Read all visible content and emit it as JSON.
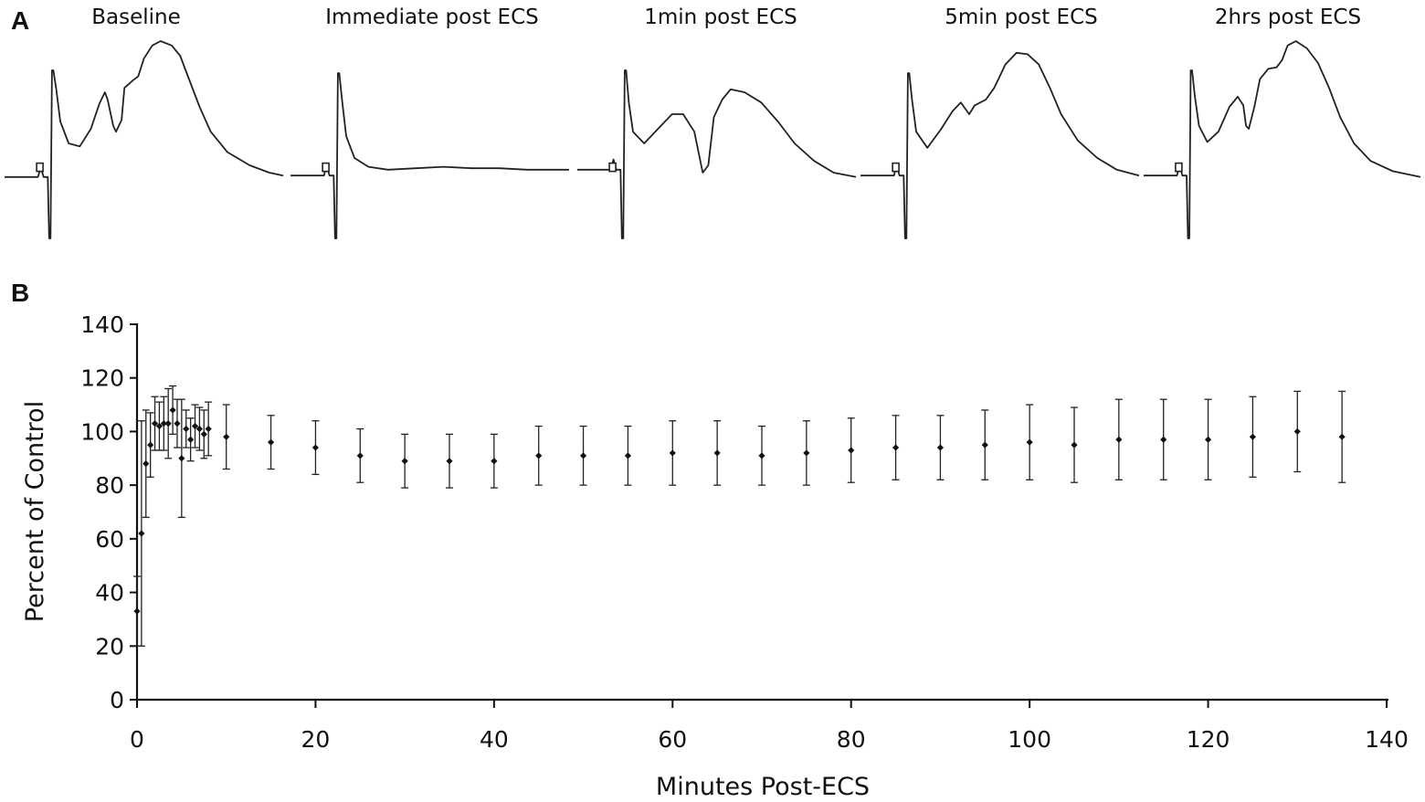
{
  "panel_a": {
    "label": "A",
    "traces": [
      {
        "name": "baseline",
        "title": "Baseline",
        "shape": [
          [
            0,
            0.93
          ],
          [
            0.12,
            0.93
          ],
          [
            0.13,
            0.86
          ],
          [
            0.14,
            0.93
          ],
          [
            0.155,
            0.93
          ],
          [
            0.16,
            1.35
          ],
          [
            0.165,
            1.35
          ],
          [
            0.17,
            0.2
          ],
          [
            0.175,
            0.2
          ],
          [
            0.185,
            0.32
          ],
          [
            0.2,
            0.55
          ],
          [
            0.23,
            0.7
          ],
          [
            0.27,
            0.72
          ],
          [
            0.31,
            0.6
          ],
          [
            0.34,
            0.43
          ],
          [
            0.36,
            0.35
          ],
          [
            0.37,
            0.4
          ],
          [
            0.39,
            0.58
          ],
          [
            0.4,
            0.62
          ],
          [
            0.42,
            0.54
          ],
          [
            0.43,
            0.32
          ],
          [
            0.46,
            0.27
          ],
          [
            0.48,
            0.24
          ],
          [
            0.5,
            0.12
          ],
          [
            0.53,
            0.03
          ],
          [
            0.56,
            0.0
          ],
          [
            0.6,
            0.03
          ],
          [
            0.63,
            0.1
          ],
          [
            0.66,
            0.25
          ],
          [
            0.7,
            0.45
          ],
          [
            0.74,
            0.62
          ],
          [
            0.8,
            0.76
          ],
          [
            0.88,
            0.85
          ],
          [
            0.95,
            0.9
          ],
          [
            1,
            0.92
          ]
        ]
      },
      {
        "name": "immediate-post-ecs",
        "title": "Immediate post ECS",
        "shape": [
          [
            0,
            0.92
          ],
          [
            0.12,
            0.92
          ],
          [
            0.13,
            0.85
          ],
          [
            0.14,
            0.92
          ],
          [
            0.155,
            0.92
          ],
          [
            0.16,
            1.35
          ],
          [
            0.165,
            1.35
          ],
          [
            0.17,
            0.22
          ],
          [
            0.175,
            0.22
          ],
          [
            0.185,
            0.4
          ],
          [
            0.2,
            0.65
          ],
          [
            0.23,
            0.8
          ],
          [
            0.28,
            0.86
          ],
          [
            0.35,
            0.88
          ],
          [
            0.45,
            0.87
          ],
          [
            0.55,
            0.86
          ],
          [
            0.65,
            0.87
          ],
          [
            0.75,
            0.87
          ],
          [
            0.85,
            0.88
          ],
          [
            1,
            0.88
          ]
        ]
      },
      {
        "name": "1min-post-ecs",
        "title": "1min post ECS",
        "shape": [
          [
            0,
            0.88
          ],
          [
            0.12,
            0.88
          ],
          [
            0.13,
            0.81
          ],
          [
            0.14,
            0.88
          ],
          [
            0.155,
            0.88
          ],
          [
            0.16,
            1.35
          ],
          [
            0.165,
            1.35
          ],
          [
            0.17,
            0.2
          ],
          [
            0.175,
            0.2
          ],
          [
            0.185,
            0.42
          ],
          [
            0.2,
            0.62
          ],
          [
            0.24,
            0.7
          ],
          [
            0.3,
            0.58
          ],
          [
            0.34,
            0.5
          ],
          [
            0.38,
            0.5
          ],
          [
            0.42,
            0.62
          ],
          [
            0.45,
            0.9
          ],
          [
            0.47,
            0.85
          ],
          [
            0.49,
            0.52
          ],
          [
            0.52,
            0.4
          ],
          [
            0.55,
            0.33
          ],
          [
            0.6,
            0.35
          ],
          [
            0.66,
            0.42
          ],
          [
            0.72,
            0.55
          ],
          [
            0.78,
            0.7
          ],
          [
            0.85,
            0.82
          ],
          [
            0.92,
            0.9
          ],
          [
            1,
            0.93
          ]
        ]
      },
      {
        "name": "5min-post-ecs",
        "title": "5min post ECS",
        "shape": [
          [
            0,
            0.92
          ],
          [
            0.12,
            0.92
          ],
          [
            0.13,
            0.85
          ],
          [
            0.14,
            0.92
          ],
          [
            0.155,
            0.92
          ],
          [
            0.16,
            1.35
          ],
          [
            0.165,
            1.35
          ],
          [
            0.17,
            0.22
          ],
          [
            0.175,
            0.22
          ],
          [
            0.185,
            0.4
          ],
          [
            0.2,
            0.62
          ],
          [
            0.24,
            0.73
          ],
          [
            0.29,
            0.6
          ],
          [
            0.33,
            0.48
          ],
          [
            0.36,
            0.42
          ],
          [
            0.39,
            0.5
          ],
          [
            0.41,
            0.44
          ],
          [
            0.45,
            0.4
          ],
          [
            0.48,
            0.32
          ],
          [
            0.52,
            0.16
          ],
          [
            0.56,
            0.08
          ],
          [
            0.6,
            0.09
          ],
          [
            0.64,
            0.16
          ],
          [
            0.68,
            0.32
          ],
          [
            0.72,
            0.5
          ],
          [
            0.78,
            0.68
          ],
          [
            0.85,
            0.8
          ],
          [
            0.92,
            0.88
          ],
          [
            1,
            0.92
          ]
        ]
      },
      {
        "name": "2hrs-post-ecs",
        "title": "2hrs post ECS",
        "shape": [
          [
            0,
            0.92
          ],
          [
            0.12,
            0.92
          ],
          [
            0.13,
            0.85
          ],
          [
            0.14,
            0.92
          ],
          [
            0.155,
            0.92
          ],
          [
            0.16,
            1.35
          ],
          [
            0.165,
            1.35
          ],
          [
            0.17,
            0.2
          ],
          [
            0.175,
            0.2
          ],
          [
            0.185,
            0.38
          ],
          [
            0.2,
            0.58
          ],
          [
            0.23,
            0.69
          ],
          [
            0.27,
            0.62
          ],
          [
            0.31,
            0.45
          ],
          [
            0.34,
            0.38
          ],
          [
            0.36,
            0.44
          ],
          [
            0.37,
            0.58
          ],
          [
            0.38,
            0.6
          ],
          [
            0.4,
            0.45
          ],
          [
            0.42,
            0.26
          ],
          [
            0.45,
            0.19
          ],
          [
            0.48,
            0.18
          ],
          [
            0.5,
            0.13
          ],
          [
            0.52,
            0.03
          ],
          [
            0.55,
            0.0
          ],
          [
            0.59,
            0.05
          ],
          [
            0.63,
            0.15
          ],
          [
            0.67,
            0.32
          ],
          [
            0.71,
            0.52
          ],
          [
            0.76,
            0.7
          ],
          [
            0.82,
            0.82
          ],
          [
            0.9,
            0.89
          ],
          [
            1,
            0.93
          ]
        ]
      }
    ]
  },
  "panel_b": {
    "label": "B"
  },
  "chart_data": {
    "type": "scatter",
    "title": "",
    "xlabel": "Minutes Post-ECS",
    "ylabel": "Percent of Control",
    "xlim": [
      0,
      140
    ],
    "ylim": [
      0,
      140
    ],
    "xticks": [
      "0",
      "20",
      "40",
      "60",
      "80",
      "100",
      "120",
      "140"
    ],
    "yticks": [
      "0",
      "20",
      "40",
      "60",
      "80",
      "100",
      "120",
      "140"
    ],
    "xtick_values": [
      0,
      20,
      40,
      60,
      80,
      100,
      120,
      140
    ],
    "ytick_values": [
      0,
      20,
      40,
      60,
      80,
      100,
      120,
      140
    ],
    "marker": "diamond",
    "error_bars": true,
    "series": [
      {
        "name": "Percent of Control",
        "x": [
          0,
          0.5,
          1,
          1.5,
          2,
          2.5,
          3,
          3.5,
          4,
          4.5,
          5,
          5.5,
          6,
          6.5,
          7,
          7.5,
          8,
          10,
          15,
          20,
          25,
          30,
          35,
          40,
          45,
          50,
          55,
          60,
          65,
          70,
          75,
          80,
          85,
          90,
          95,
          100,
          105,
          110,
          115,
          120,
          125,
          130,
          135
        ],
        "y": [
          33,
          62,
          88,
          95,
          103,
          102,
          103,
          103,
          108,
          103,
          90,
          101,
          97,
          102,
          101,
          99,
          101,
          98,
          96,
          94,
          91,
          89,
          89,
          89,
          91,
          91,
          91,
          92,
          92,
          91,
          92,
          93,
          94,
          94,
          95,
          96,
          95,
          97,
          97,
          97,
          98,
          100,
          98
        ],
        "err": [
          13,
          42,
          20,
          12,
          10,
          9,
          10,
          13,
          9,
          9,
          22,
          7,
          8,
          8,
          8,
          9,
          10,
          12,
          10,
          10,
          10,
          10,
          10,
          10,
          11,
          11,
          11,
          12,
          12,
          11,
          12,
          12,
          12,
          12,
          13,
          14,
          14,
          15,
          15,
          15,
          15,
          15,
          17
        ]
      }
    ]
  }
}
